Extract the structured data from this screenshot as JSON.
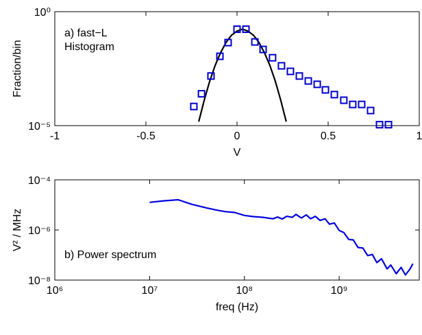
{
  "chart_data": [
    {
      "type": "scatter",
      "xlabel": "V",
      "ylabel": "Fraction/bin",
      "annotation": [
        "a) fast−L",
        "Histogram"
      ],
      "xlim": [
        -1,
        1
      ],
      "xticks": [
        -1,
        -0.5,
        0,
        0.5,
        1
      ],
      "ylim": [
        1e-05,
        1
      ],
      "ylog": true,
      "yticks": [
        {
          "value": 1e-05,
          "label": "10⁻⁵"
        },
        {
          "value": 1,
          "label": "10⁰"
        }
      ],
      "series": [
        {
          "type": "scatter",
          "color": "#0000cc",
          "x": [
            -0.237,
            -0.195,
            -0.143,
            -0.094,
            -0.049,
            0.0,
            0.049,
            0.098,
            0.143,
            0.195,
            0.244,
            0.293,
            0.342,
            0.391,
            0.44,
            0.485,
            0.534,
            0.586,
            0.635,
            0.684,
            0.733,
            0.782,
            0.831
          ],
          "values": [
            6.9e-05,
            0.00025,
            0.0015,
            0.011,
            0.044,
            0.17,
            0.17,
            0.047,
            0.022,
            0.0095,
            0.0042,
            0.0024,
            0.0015,
            0.00091,
            0.00065,
            0.00037,
            0.00023,
            0.00013,
            8.5e-05,
            8.5e-05,
            4.6e-05,
            1.1e-05,
            1.1e-05
          ]
        },
        {
          "type": "line",
          "color": "#000000",
          "x": [
            -0.21,
            -0.18,
            -0.15,
            -0.12,
            -0.09,
            -0.06,
            -0.03,
            0,
            0.03,
            0.06,
            0.09,
            0.12,
            0.15,
            0.18,
            0.21,
            0.24,
            0.27
          ],
          "values": [
            1.5e-05,
            0.00013,
            0.00089,
            0.0044,
            0.016,
            0.045,
            0.093,
            0.14,
            0.17,
            0.14,
            0.093,
            0.045,
            0.016,
            0.0044,
            0.00089,
            0.00013,
            1.5e-05
          ]
        }
      ]
    },
    {
      "type": "line",
      "xlabel": "freq (Hz)",
      "ylabel": "V² / MHz",
      "annotation": [
        "b) Power spectrum"
      ],
      "xlim": [
        1000000.0,
        7000000000.0
      ],
      "xlog": true,
      "xticks": [
        {
          "value": 1000000.0,
          "label": "10⁶"
        },
        {
          "value": 10000000.0,
          "label": "10⁷"
        },
        {
          "value": 100000000.0,
          "label": "10⁸"
        },
        {
          "value": 1000000000.0,
          "label": "10⁹"
        }
      ],
      "ylim": [
        1e-08,
        0.0001
      ],
      "ylog": true,
      "yticks": [
        {
          "value": 1e-08,
          "label": "10⁻⁸"
        },
        {
          "value": 1e-06,
          "label": "10⁻⁶"
        },
        {
          "value": 0.0001,
          "label": "10⁻⁴"
        }
      ],
      "series": [
        {
          "type": "line",
          "color": "#0000dd",
          "x": [
            10000000.0,
            14000000.0,
            20000000.0,
            28000000.0,
            40000000.0,
            50000000.0,
            63000000.0,
            79000000.0,
            100000000.0,
            126000000.0,
            158000000.0,
            200000000.0,
            224000000.0,
            250000000.0,
            280000000.0,
            320000000.0,
            350000000.0,
            400000000.0,
            450000000.0,
            500000000.0,
            560000000.0,
            630000000.0,
            710000000.0,
            790000000.0,
            890000000.0,
            1000000000.0,
            1120000000.0,
            1260000000.0,
            1410000000.0,
            1580000000.0,
            1780000000.0,
            2000000000.0,
            2240000000.0,
            2500000000.0,
            2800000000.0,
            3200000000.0,
            3500000000.0,
            4000000000.0,
            4500000000.0,
            5000000000.0,
            5600000000.0,
            6000000000.0
          ],
          "values": [
            1.26e-05,
            1.45e-05,
            1.6e-05,
            1.05e-05,
            7.6e-06,
            6.3e-06,
            5.4e-06,
            5e-06,
            3.8e-06,
            3.4e-06,
            3.2e-06,
            2.8e-06,
            3.3e-06,
            2.75e-06,
            3.5e-06,
            3.2e-06,
            4.2e-06,
            3e-06,
            4e-06,
            2.8e-06,
            3.5e-06,
            2.4e-06,
            2.8e-06,
            1.7e-06,
            1.9e-06,
            9.5e-07,
            7.9e-07,
            4.2e-07,
            4e-07,
            2e-07,
            1.9e-07,
            9.5e-08,
            1.05e-07,
            5e-08,
            7.1e-08,
            2.8e-08,
            4e-08,
            1.8e-08,
            3.2e-08,
            1.6e-08,
            2.8e-08,
            4.5e-08
          ]
        }
      ]
    }
  ]
}
